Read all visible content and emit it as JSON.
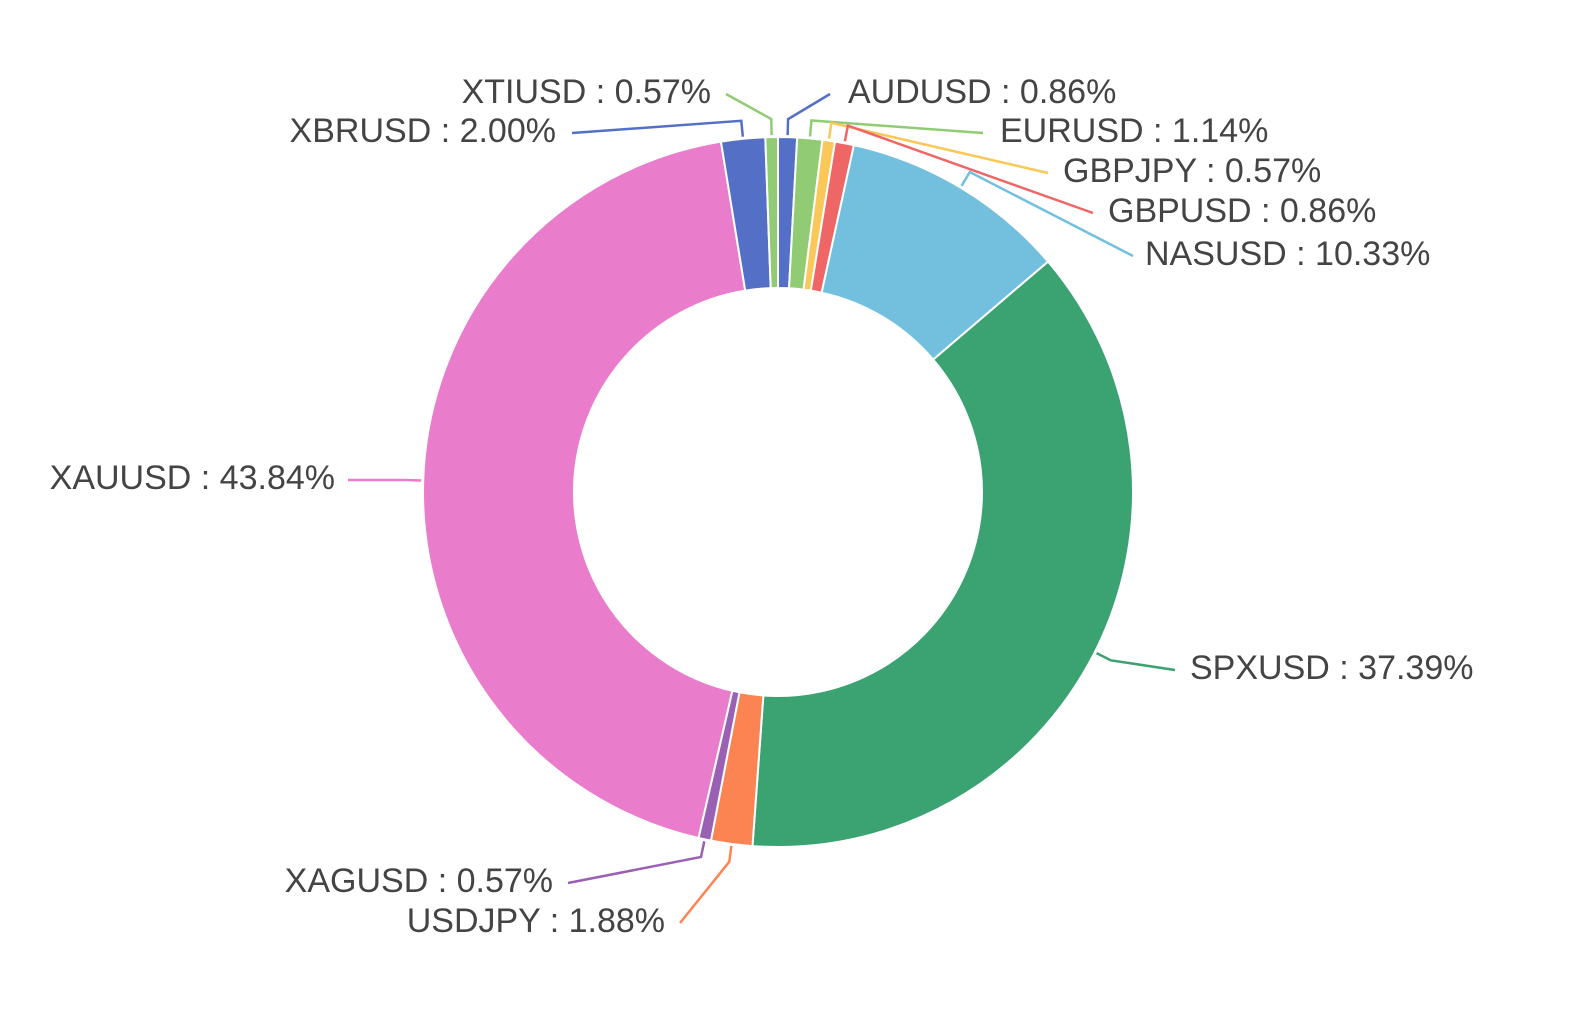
{
  "chart_data": {
    "type": "pie",
    "donut": true,
    "label_format": "{name} : {value}%",
    "slices": [
      {
        "name": "AUDUSD",
        "value": 0.86,
        "label": "0.86%",
        "color": "#5470c6"
      },
      {
        "name": "EURUSD",
        "value": 1.14,
        "label": "1.14%",
        "color": "#91cc75"
      },
      {
        "name": "GBPJPY",
        "value": 0.57,
        "label": "0.57%",
        "color": "#fac858"
      },
      {
        "name": "GBPUSD",
        "value": 0.86,
        "label": "0.86%",
        "color": "#ee6666"
      },
      {
        "name": "NASUSD",
        "value": 10.33,
        "label": "10.33%",
        "color": "#73c0de"
      },
      {
        "name": "SPXUSD",
        "value": 37.39,
        "label": "37.39%",
        "color": "#3ba272"
      },
      {
        "name": "USDJPY",
        "value": 1.88,
        "label": "1.88%",
        "color": "#fc8452"
      },
      {
        "name": "XAGUSD",
        "value": 0.57,
        "label": "0.57%",
        "color": "#9a60b4"
      },
      {
        "name": "XAUUSD",
        "value": 43.84,
        "label": "43.84%",
        "color": "#ea7ccc"
      },
      {
        "name": "XBRUSD",
        "value": 2.0,
        "label": "2.00%",
        "color": "#5470c6"
      },
      {
        "name": "XTIUSD",
        "value": 0.57,
        "label": "0.57%",
        "color": "#91cc75"
      }
    ]
  }
}
